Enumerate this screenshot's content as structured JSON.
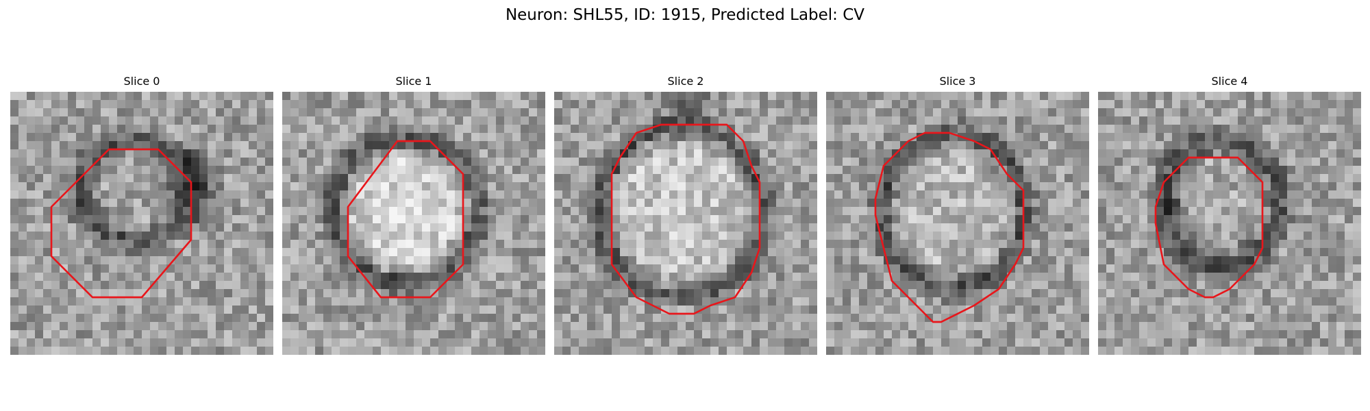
{
  "figure": {
    "title": "Neuron: SHL55, ID: 1915, Predicted Label: CV"
  },
  "panels": [
    {
      "title": "Slice 0",
      "contour_color": "#e8161b"
    },
    {
      "title": "Slice 1",
      "contour_color": "#e8161b"
    },
    {
      "title": "Slice 2",
      "contour_color": "#e8161b"
    },
    {
      "title": "Slice 3",
      "contour_color": "#e8161b"
    },
    {
      "title": "Slice 4",
      "contour_color": "#e8161b"
    }
  ]
}
